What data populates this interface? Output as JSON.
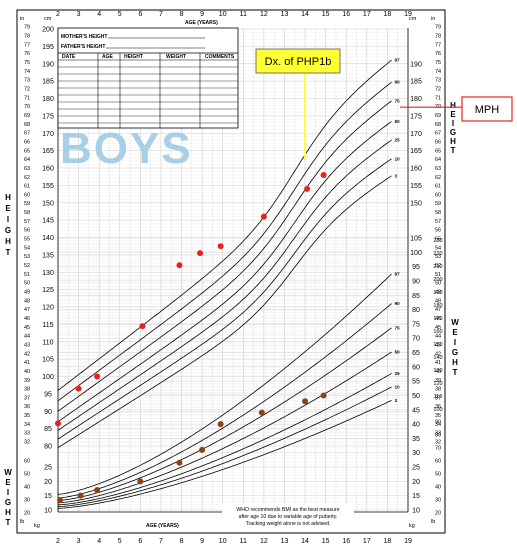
{
  "colors": {
    "height_point": "#e8231d",
    "weight_point": "#8b4513",
    "callout_fill": "#ffff33",
    "mph_line": "#e8231d",
    "grid": "#cfcfcf",
    "curve": "#000000",
    "boys_text": "#a9cfe6"
  },
  "form": {
    "mothers_height": "MOTHER'S HEIGHT",
    "fathers_height": "FATHER'S HEIGHT",
    "columns": [
      "DATE",
      "AGE",
      "HEIGHT",
      "WEIGHT",
      "COMMENTS"
    ]
  },
  "boys_label": "BOYS",
  "side_labels": {
    "height_left": [
      "H",
      "E",
      "I",
      "G",
      "H",
      "T"
    ],
    "height_right": [
      "H",
      "E",
      "I",
      "G",
      "H",
      "T"
    ],
    "weight_left": [
      "W",
      "E",
      "I",
      "G",
      "H",
      "T"
    ],
    "weight_right": [
      "W",
      "E",
      "I",
      "G",
      "H",
      "T"
    ]
  },
  "axis_titles": {
    "age_top": "AGE (YEARS)",
    "age_bottom": "AGE (YEARS)",
    "in": "in",
    "cm": "cm",
    "lb": "lb",
    "kg": "kg"
  },
  "who_note": [
    "WHO recommends BMI as the best measure",
    "after age 10 due to variable age of puberty.",
    "Tracking weight alone is not advised."
  ],
  "callout_text": "Dx. of PHP1b",
  "mph_label": "MPH",
  "chart_data": {
    "type": "scatter",
    "age_ticks": [
      2,
      3,
      4,
      5,
      6,
      7,
      8,
      9,
      10,
      11,
      12,
      13,
      14,
      15,
      16,
      17,
      18,
      19
    ],
    "height_cm_ticks": [
      80,
      85,
      90,
      95,
      100,
      105,
      110,
      115,
      120,
      125,
      130,
      135,
      140,
      145,
      150,
      155,
      160,
      165,
      170,
      175,
      180,
      185,
      190,
      195,
      200
    ],
    "height_cm_labels_right": [
      150,
      155,
      160,
      165,
      170,
      175,
      180,
      185,
      190
    ],
    "height_in_ticks": [
      30,
      31,
      32,
      33,
      34,
      35,
      36,
      37,
      38,
      39,
      40,
      41,
      42,
      43,
      44,
      45,
      46,
      47,
      48,
      49,
      50,
      51,
      52,
      53,
      54,
      55,
      56,
      57,
      58,
      59,
      60,
      61,
      62,
      63,
      64,
      65,
      66,
      67,
      68,
      69,
      70,
      71,
      72,
      73,
      74,
      75,
      76,
      77,
      78,
      79,
      80
    ],
    "weight_kg_ticks": [
      10,
      15,
      20,
      25,
      30,
      35,
      40,
      45,
      50,
      55,
      60,
      65,
      70,
      75,
      80,
      85,
      90,
      95,
      100,
      105
    ],
    "weight_lb_ticks": [
      20,
      30,
      40,
      50,
      60,
      70,
      80,
      90,
      100,
      110,
      120,
      130,
      140,
      150,
      160,
      170,
      180,
      190,
      200,
      210,
      220,
      230
    ],
    "percentile_labels": [
      "97",
      "90",
      "75",
      "50",
      "25",
      "10",
      "3"
    ],
    "series": [
      {
        "name": "Height",
        "unit": "cm",
        "points": [
          [
            2.0,
            86.5
          ],
          [
            3.0,
            96.5
          ],
          [
            3.9,
            100
          ],
          [
            6.1,
            114.5
          ],
          [
            7.9,
            132
          ],
          [
            8.9,
            135.5
          ],
          [
            9.9,
            137.5
          ],
          [
            12.0,
            146
          ],
          [
            14.1,
            154
          ],
          [
            14.9,
            158
          ]
        ]
      },
      {
        "name": "Weight",
        "unit": "kg",
        "points": [
          [
            2.1,
            13.5
          ],
          [
            3.1,
            15
          ],
          [
            3.9,
            17
          ],
          [
            6.0,
            20
          ],
          [
            7.9,
            26.5
          ],
          [
            9.0,
            31
          ],
          [
            9.9,
            40
          ],
          [
            11.9,
            44
          ],
          [
            14.0,
            48
          ],
          [
            14.9,
            50
          ]
        ]
      }
    ],
    "mph_cm": 177.5,
    "callout_age": 14.0
  }
}
